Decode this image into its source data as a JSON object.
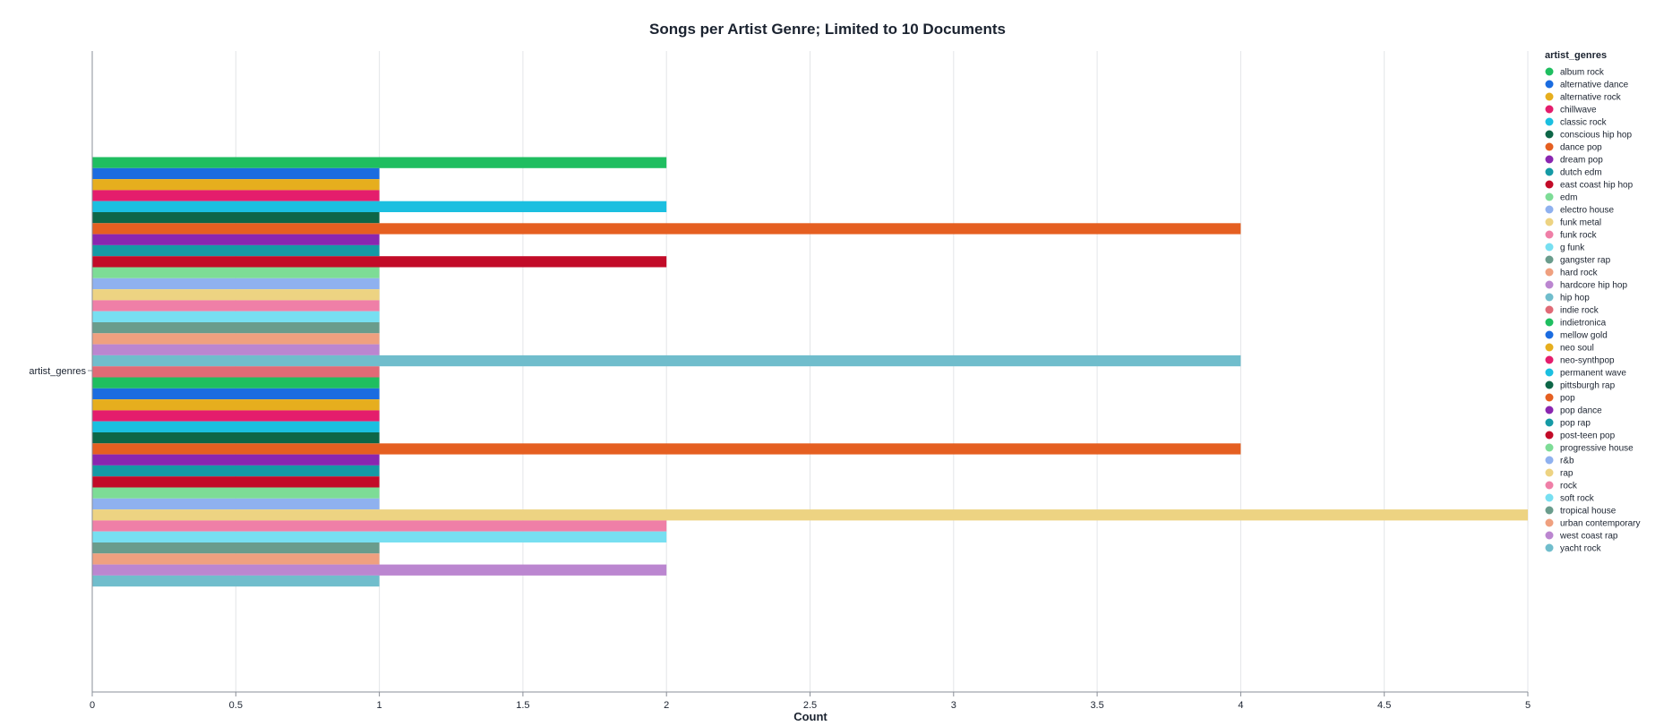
{
  "chart_data": {
    "type": "bar",
    "orientation": "horizontal",
    "title": "Songs per Artist Genre; Limited to 10 Documents",
    "xlabel": "Count",
    "ylabel": "artist_genres",
    "xlim": [
      0,
      5
    ],
    "xticks": [
      "0",
      "0.5",
      "1",
      "1.5",
      "2",
      "2.5",
      "3",
      "3.5",
      "4",
      "4.5",
      "5"
    ],
    "grid": "vertical",
    "legend_title": "artist_genres",
    "legend_position": "right",
    "categories": [
      "album rock",
      "alternative dance",
      "alternative rock",
      "chillwave",
      "classic rock",
      "conscious hip hop",
      "dance pop",
      "dream pop",
      "dutch edm",
      "east coast hip hop",
      "edm",
      "electro house",
      "funk metal",
      "funk rock",
      "g funk",
      "gangster rap",
      "hard rock",
      "hardcore hip hop",
      "hip hop",
      "indie rock",
      "indietronica",
      "mellow gold",
      "neo soul",
      "neo-synthpop",
      "permanent wave",
      "pittsburgh rap",
      "pop",
      "pop dance",
      "pop rap",
      "post-teen pop",
      "progressive house",
      "r&b",
      "rap",
      "rock",
      "soft rock",
      "tropical house",
      "urban contemporary",
      "west coast rap",
      "yacht rock"
    ],
    "values": [
      2,
      1,
      1,
      1,
      2,
      1,
      4,
      1,
      1,
      2,
      1,
      1,
      1,
      1,
      1,
      1,
      1,
      1,
      4,
      1,
      1,
      1,
      1,
      1,
      1,
      1,
      4,
      1,
      1,
      1,
      1,
      1,
      5,
      2,
      2,
      1,
      1,
      2,
      1
    ],
    "colors": [
      "#1fbe60",
      "#1b6ce0",
      "#e6ae1e",
      "#e41d6c",
      "#1bbfe0",
      "#0e6647",
      "#e55f21",
      "#8a26b0",
      "#159aa5",
      "#c20b28",
      "#7ddc96",
      "#8fb1ef",
      "#edd382",
      "#ef7fa7",
      "#77dff1",
      "#6a9c8c",
      "#efa07f",
      "#bb86d0",
      "#70bdcc",
      "#e06a76",
      "#1fbe60",
      "#1b6ce0",
      "#e6ae1e",
      "#e41d6c",
      "#1bbfe0",
      "#0e6647",
      "#e55f21",
      "#8a26b0",
      "#159aa5",
      "#c20b28",
      "#7ddc96",
      "#8fb1ef",
      "#edd382",
      "#ef7fa7",
      "#77dff1",
      "#6a9c8c",
      "#efa07f",
      "#bb86d0",
      "#70bdcc"
    ]
  }
}
